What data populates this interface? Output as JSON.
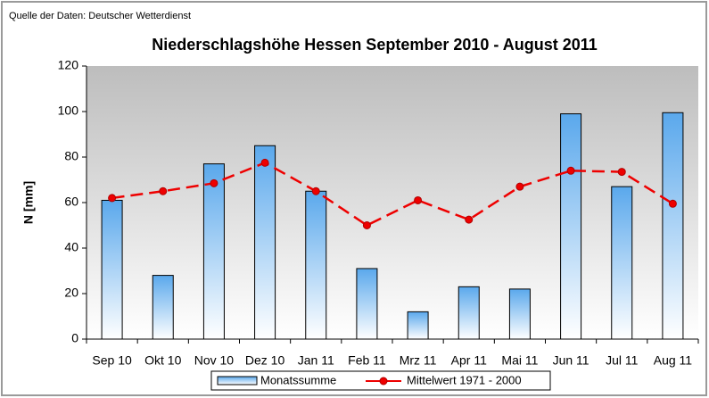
{
  "chart_data": {
    "type": "bar",
    "source": "Quelle der Daten: Deutscher Wetterdienst",
    "title": "Niederschlagshöhe Hessen September 2010 -  August 2011",
    "y_label": "N [mm]",
    "categories": [
      "Sep 10",
      "Okt 10",
      "Nov 10",
      "Dez 10",
      "Jan 11",
      "Feb 11",
      "Mrz 11",
      "Apr 11",
      "Mai 11",
      "Jun 11",
      "Jul 11",
      "Aug 11"
    ],
    "series": [
      {
        "name": "Monatssumme",
        "type": "bar",
        "color": "#5aa8ec",
        "values": [
          61,
          28,
          77,
          85,
          65,
          31,
          12,
          23,
          22,
          99,
          67,
          99.5
        ]
      },
      {
        "name": "Mittelwert 1971 - 2000",
        "type": "line",
        "color": "#ee0000",
        "values": [
          62,
          65,
          68.5,
          77.5,
          65,
          50,
          61,
          52.5,
          67,
          74,
          73.5,
          59.5
        ]
      }
    ],
    "ylim": [
      0,
      120
    ],
    "yticks": [
      0,
      20,
      40,
      60,
      80,
      100,
      120
    ],
    "legend": "bottom"
  }
}
